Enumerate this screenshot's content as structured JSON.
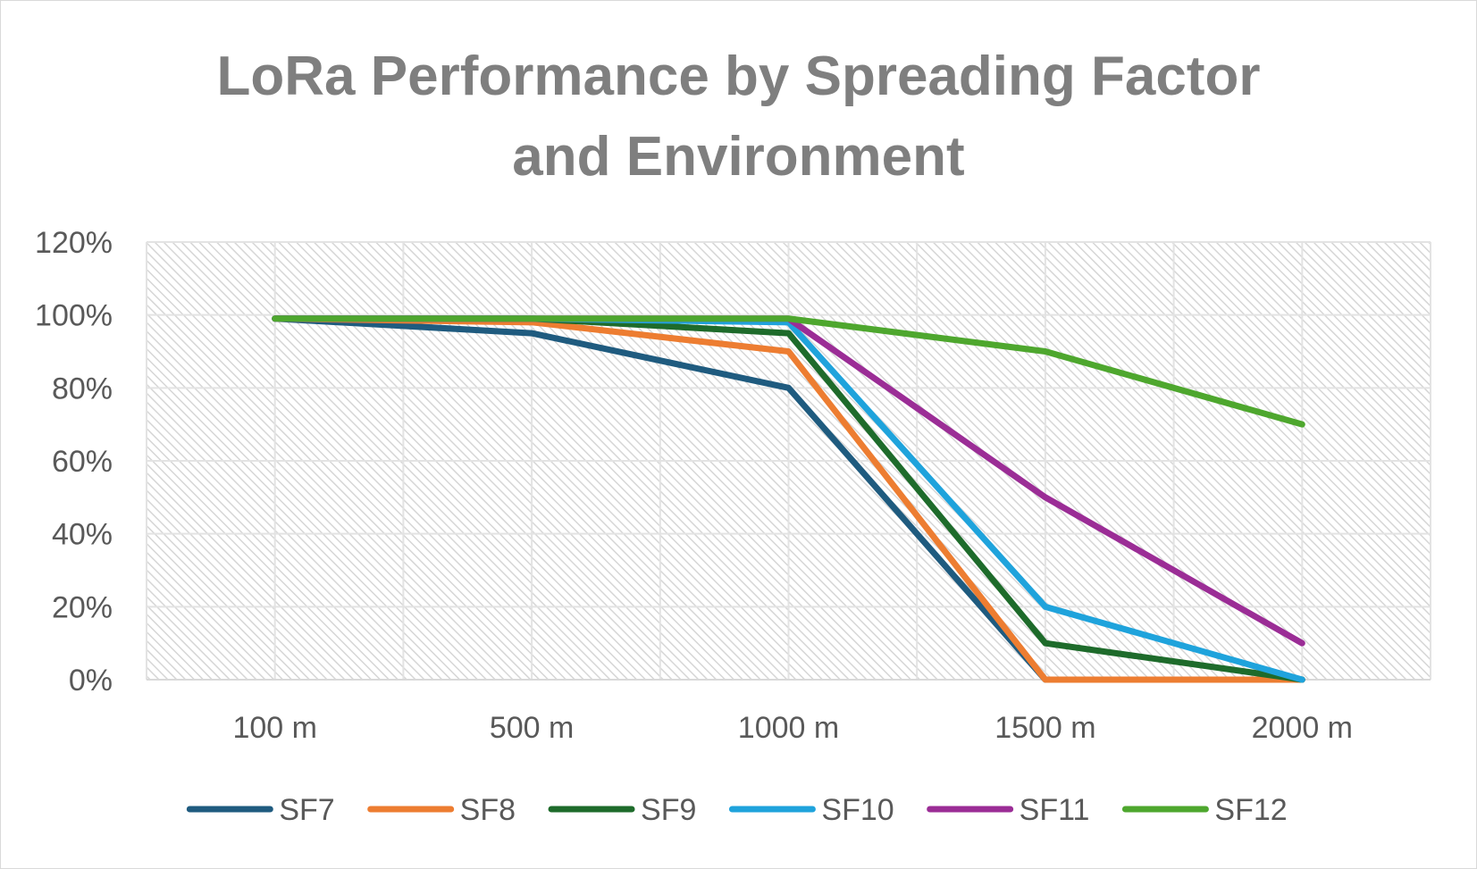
{
  "chart_data": {
    "type": "line",
    "title_lines": [
      "LoRa Performance by Spreading Factor",
      "and Environment"
    ],
    "categories": [
      "100 m",
      "500 m",
      "1000 m",
      "1500 m",
      "2000 m"
    ],
    "xlabel": "",
    "ylabel": "",
    "ylim": [
      0,
      1.2
    ],
    "yticks": [
      "0%",
      "20%",
      "40%",
      "60%",
      "80%",
      "100%",
      "120%"
    ],
    "grid": true,
    "legend": "bottom",
    "series": [
      {
        "name": "SF7",
        "color": "#1f5b7f",
        "values": [
          0.99,
          0.95,
          0.8,
          0.0,
          0.0
        ]
      },
      {
        "name": "SF8",
        "color": "#ed7d31",
        "values": [
          0.99,
          0.98,
          0.9,
          0.0,
          0.0
        ]
      },
      {
        "name": "SF9",
        "color": "#1e6b2b",
        "values": [
          0.99,
          0.99,
          0.95,
          0.1,
          0.0
        ]
      },
      {
        "name": "SF10",
        "color": "#1fa3dc",
        "values": [
          0.99,
          0.99,
          0.98,
          0.2,
          0.0
        ]
      },
      {
        "name": "SF11",
        "color": "#9b2d96",
        "values": [
          0.99,
          0.99,
          0.99,
          0.5,
          0.1
        ]
      },
      {
        "name": "SF12",
        "color": "#4ea72e",
        "values": [
          0.99,
          0.99,
          0.99,
          0.9,
          0.7
        ]
      }
    ]
  }
}
